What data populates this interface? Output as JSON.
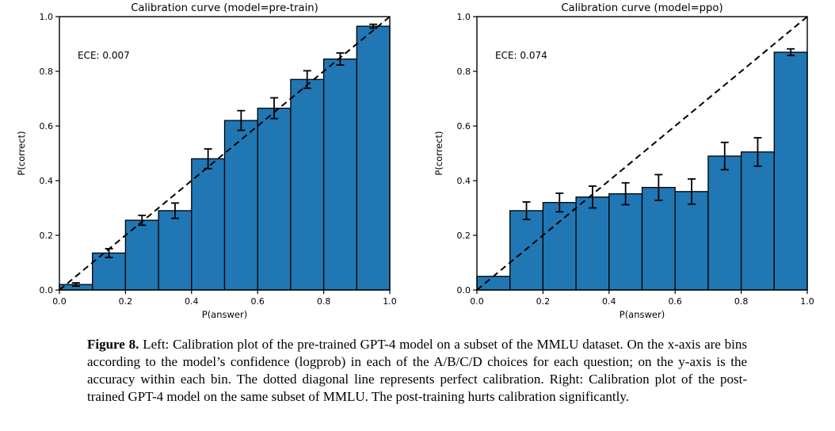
{
  "figure": {
    "label": "Figure 8.",
    "caption": " Left: Calibration plot of the pre-trained GPT-4 model on a subset of the MMLU dataset. On the x-axis are bins according to the model’s confidence (logprob) in each of the A/B/C/D choices for each question; on the y-axis is the accuracy within each bin. The dotted diagonal line represents perfect calibration. Right: Calibration plot of the post-trained GPT-4 model on the same subset of MMLU. The post-training hurts calibration significantly."
  },
  "colors": {
    "bar_fill": "#2077b4",
    "bar_edge": "#000000",
    "diagonal_line": "#000000",
    "text": "#000000"
  },
  "chart_data": [
    {
      "type": "bar",
      "title": "Calibration curve (model=pre-train)",
      "annotation": "ECE: 0.007",
      "xlabel": "P(answer)",
      "ylabel": "P(correct)",
      "xlim": [
        0.0,
        1.0
      ],
      "ylim": [
        0.0,
        1.0
      ],
      "grid": false,
      "diagonal_reference_line": true,
      "xticks": [
        "0.0",
        "0.2",
        "0.4",
        "0.6",
        "0.8",
        "1.0"
      ],
      "yticks": [
        "0.0",
        "0.2",
        "0.4",
        "0.6",
        "0.8",
        "1.0"
      ],
      "bin_edges": [
        0.0,
        0.1,
        0.2,
        0.3,
        0.4,
        0.5,
        0.6,
        0.7,
        0.8,
        0.9,
        1.0
      ],
      "values": [
        0.02,
        0.135,
        0.255,
        0.29,
        0.48,
        0.62,
        0.665,
        0.77,
        0.845,
        0.965
      ],
      "errors": [
        0.006,
        0.016,
        0.018,
        0.028,
        0.036,
        0.036,
        0.038,
        0.032,
        0.022,
        0.007
      ]
    },
    {
      "type": "bar",
      "title": "Calibration curve (model=ppo)",
      "annotation": "ECE: 0.074",
      "xlabel": "P(answer)",
      "ylabel": "P(correct)",
      "xlim": [
        0.0,
        1.0
      ],
      "ylim": [
        0.0,
        1.0
      ],
      "grid": false,
      "diagonal_reference_line": true,
      "xticks": [
        "0.0",
        "0.2",
        "0.4",
        "0.6",
        "0.8",
        "1.0"
      ],
      "yticks": [
        "0.0",
        "0.2",
        "0.4",
        "0.6",
        "0.8",
        "1.0"
      ],
      "bin_edges": [
        0.0,
        0.1,
        0.2,
        0.3,
        0.4,
        0.5,
        0.6,
        0.7,
        0.8,
        0.9,
        1.0
      ],
      "values": [
        0.05,
        0.29,
        0.32,
        0.34,
        0.352,
        0.375,
        0.36,
        0.49,
        0.505,
        0.87
      ],
      "errors": [
        0.0,
        0.032,
        0.034,
        0.04,
        0.04,
        0.047,
        0.046,
        0.05,
        0.052,
        0.012
      ]
    }
  ]
}
